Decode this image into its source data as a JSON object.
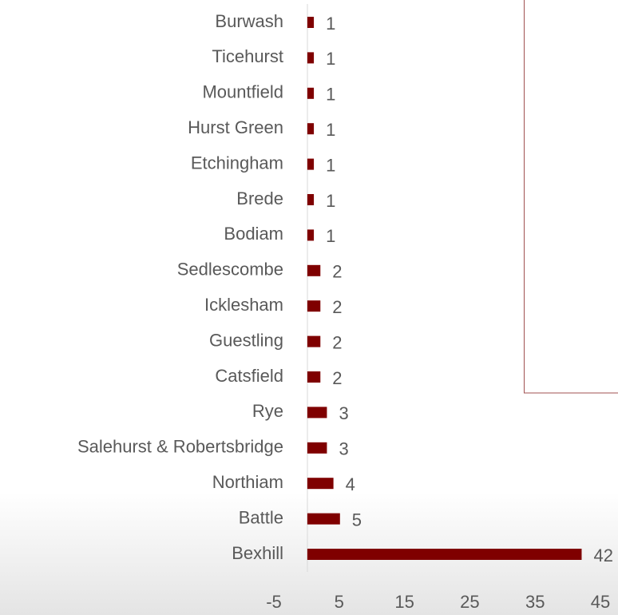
{
  "chart_data": {
    "type": "bar",
    "orientation": "horizontal",
    "categories": [
      "Burwash",
      "Ticehurst",
      "Mountfield",
      "Hurst Green",
      "Etchingham",
      "Brede",
      "Bodiam",
      "Sedlescombe",
      "Icklesham",
      "Guestling",
      "Catsfield",
      "Rye",
      "Salehurst & Robertsbridge",
      "Northiam",
      "Battle",
      "Bexhill"
    ],
    "values": [
      1,
      1,
      1,
      1,
      1,
      1,
      1,
      2,
      2,
      2,
      2,
      3,
      3,
      4,
      5,
      42
    ],
    "color": "#7f0000",
    "xlim": [
      -5,
      45
    ],
    "xticks": [
      -5,
      5,
      15,
      25,
      35,
      45
    ],
    "grid": false
  }
}
